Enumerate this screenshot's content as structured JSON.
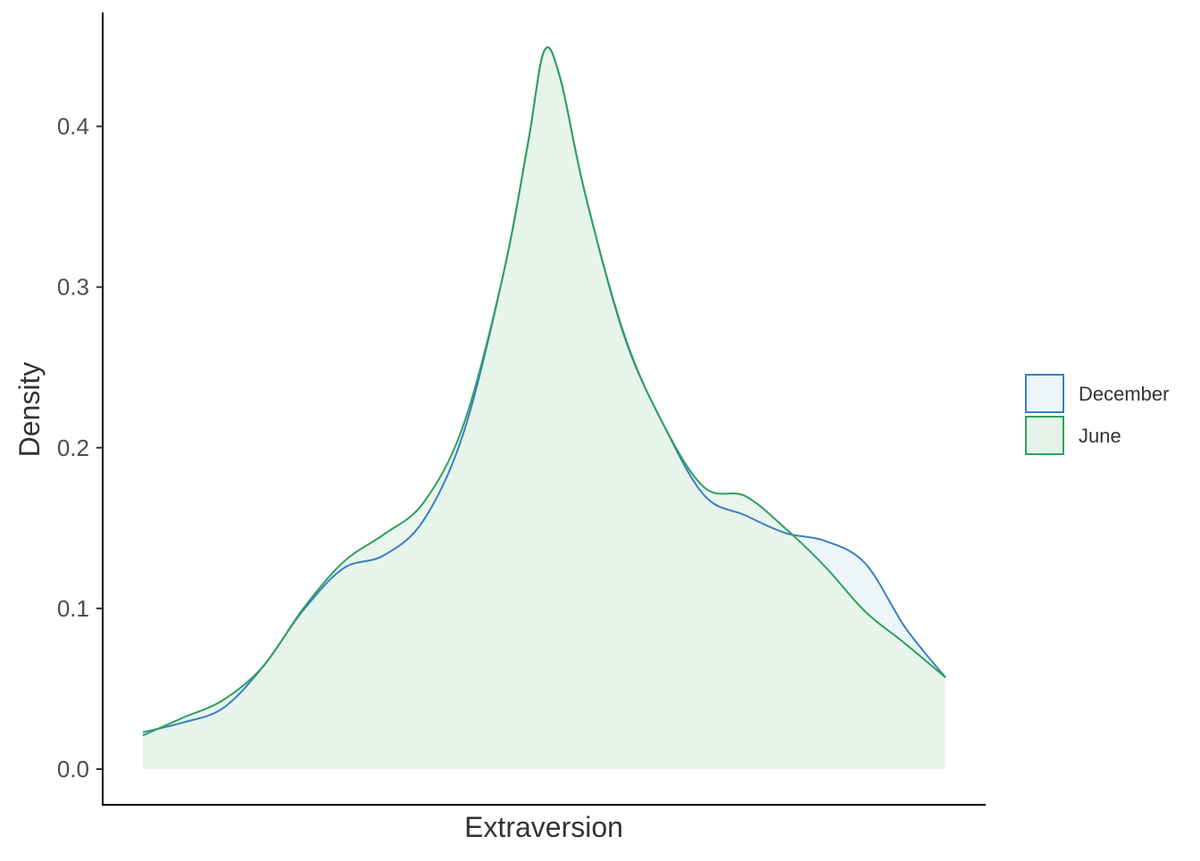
{
  "chart_data": {
    "type": "area",
    "title": "",
    "xlabel": "Extraversion",
    "ylabel": "Density",
    "ylim": [
      0,
      0.45
    ],
    "yticks": [
      {
        "value": 0.0,
        "label": "0.0"
      },
      {
        "value": 0.1,
        "label": "0.1"
      },
      {
        "value": 0.2,
        "label": "0.2"
      },
      {
        "value": 0.3,
        "label": "0.3"
      },
      {
        "value": 0.4,
        "label": "0.4"
      }
    ],
    "x_tick_labels": [],
    "grid": false,
    "legend_position": "right",
    "x": [
      0,
      0.05,
      0.1,
      0.15,
      0.2,
      0.25,
      0.3,
      0.35,
      0.4,
      0.45,
      0.48,
      0.5,
      0.52,
      0.55,
      0.6,
      0.65,
      0.7,
      0.75,
      0.8,
      0.85,
      0.9,
      0.95,
      1.0
    ],
    "series": [
      {
        "name": "December",
        "color": "#3a7fc1",
        "fill": "#edf5f8",
        "values": [
          0.023,
          0.029,
          0.038,
          0.064,
          0.099,
          0.125,
          0.133,
          0.155,
          0.21,
          0.31,
          0.39,
          0.447,
          0.43,
          0.36,
          0.269,
          0.213,
          0.17,
          0.158,
          0.147,
          0.142,
          0.128,
          0.088,
          0.057
        ]
      },
      {
        "name": "June",
        "color": "#2fa05d",
        "fill": "#e5f3ea",
        "values": [
          0.021,
          0.032,
          0.043,
          0.064,
          0.1,
          0.129,
          0.146,
          0.166,
          0.215,
          0.31,
          0.39,
          0.447,
          0.43,
          0.36,
          0.27,
          0.213,
          0.175,
          0.17,
          0.15,
          0.126,
          0.098,
          0.078,
          0.057
        ]
      }
    ]
  }
}
